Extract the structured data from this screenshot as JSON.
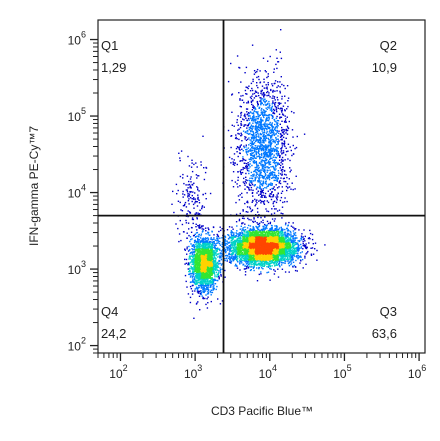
{
  "chart_data": {
    "type": "scatter",
    "plot_style": "flow-cytometry density dot plot",
    "xlabel": "CD3 Pacific Blue™",
    "ylabel": "IFN-gamma PE-Cy™7",
    "x_scale": "log",
    "y_scale": "log",
    "xlim": [
      50,
      1200000
    ],
    "ylim": [
      80,
      1800000
    ],
    "x_ticks": [
      {
        "value": 100,
        "base": "10",
        "exp": "2"
      },
      {
        "value": 1000,
        "base": "10",
        "exp": "3"
      },
      {
        "value": 10000,
        "base": "10",
        "exp": "4"
      },
      {
        "value": 100000,
        "base": "10",
        "exp": "5"
      },
      {
        "value": 1000000,
        "base": "10",
        "exp": "6"
      }
    ],
    "y_ticks": [
      {
        "value": 100,
        "base": "10",
        "exp": "2"
      },
      {
        "value": 1000,
        "base": "10",
        "exp": "3"
      },
      {
        "value": 10000,
        "base": "10",
        "exp": "4"
      },
      {
        "value": 100000,
        "base": "10",
        "exp": "5"
      },
      {
        "value": 1000000,
        "base": "10",
        "exp": "6"
      }
    ],
    "gate": {
      "x": 2400,
      "y": 5000
    },
    "quadrants": [
      {
        "name": "Q1",
        "value": "1,29",
        "position": "top-left"
      },
      {
        "name": "Q2",
        "value": "10,9",
        "position": "top-right"
      },
      {
        "name": "Q3",
        "value": "63,6",
        "position": "bottom-right"
      },
      {
        "name": "Q4",
        "value": "24,2",
        "position": "bottom-left"
      }
    ],
    "populations": [
      {
        "center_x": 8000,
        "center_y": 2000,
        "spread_x_decades": 0.22,
        "spread_y_decades": 0.11,
        "weight": 0.55
      },
      {
        "center_x": 1300,
        "center_y": 1200,
        "spread_x_decades": 0.09,
        "spread_y_decades": 0.17,
        "weight": 0.24
      },
      {
        "center_x": 8000,
        "center_y": 40000,
        "spread_x_decades": 0.17,
        "spread_y_decades": 0.45,
        "weight": 0.19
      },
      {
        "center_x": 900,
        "center_y": 8000,
        "spread_x_decades": 0.1,
        "spread_y_decades": 0.3,
        "weight": 0.02
      }
    ],
    "density_colors": [
      "#0000c8",
      "#0078ff",
      "#00d2c8",
      "#32e632",
      "#ffd200",
      "#ff4600"
    ],
    "grid": false,
    "legend": "none"
  }
}
